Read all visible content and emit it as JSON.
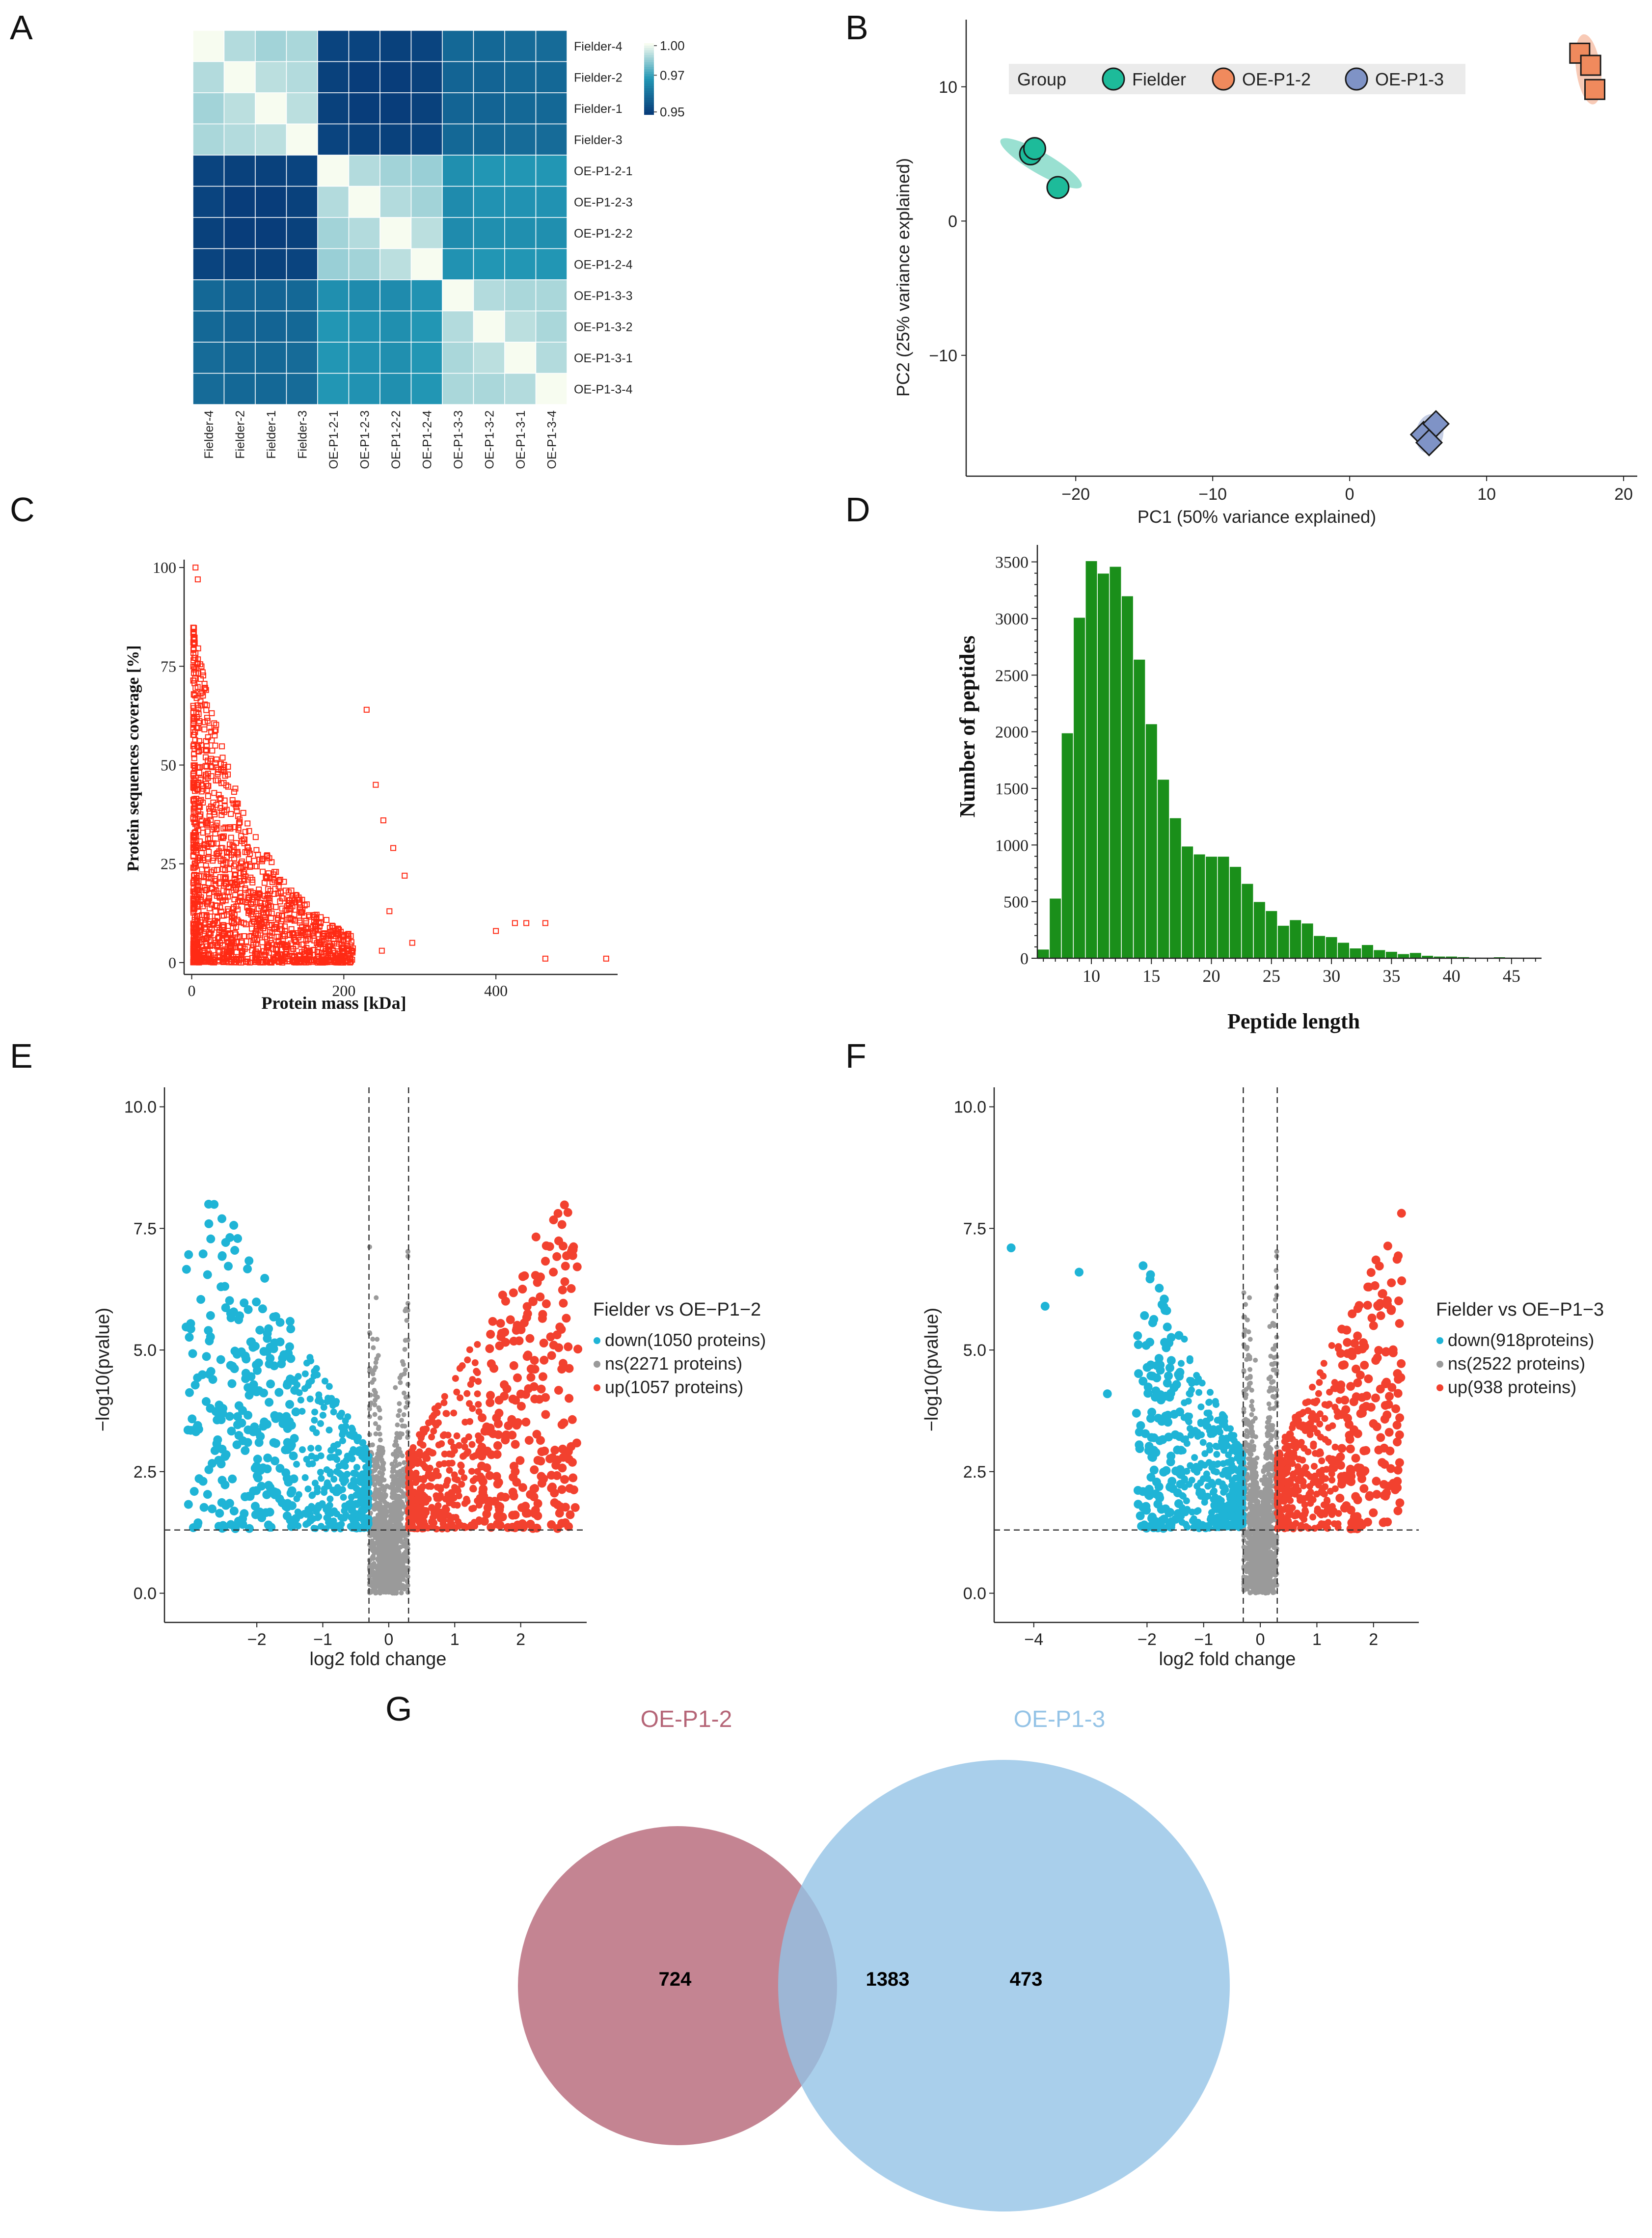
{
  "figure": {
    "panel_labels": [
      "A",
      "B",
      "C",
      "D",
      "E",
      "F",
      "G"
    ],
    "colors": {
      "fielder": "#1dbb9a",
      "oe12": "#f08a5d",
      "oe13": "#7f93c6",
      "down": "#1fb4d6",
      "up": "#f2412f",
      "ns": "#9a9a9a",
      "bar": "#1a8f1a",
      "scatter": "#ff2a14",
      "venn_left": "#b56577",
      "venn_right": "#94c3e6"
    }
  },
  "chart_data": [
    {
      "panel": "A",
      "type": "heatmap",
      "labels": [
        "Fielder-4",
        "Fielder-2",
        "Fielder-1",
        "Fielder-3",
        "OE-P1-2-1",
        "OE-P1-2-3",
        "OE-P1-2-2",
        "OE-P1-2-4",
        "OE-P1-3-3",
        "OE-P1-3-2",
        "OE-P1-3-1",
        "OE-P1-3-4"
      ],
      "colorbar": {
        "ticks": [
          "1.00",
          "0.97",
          "0.95"
        ],
        "min": 0.95,
        "max": 1.0
      },
      "values": [
        [
          1.0,
          0.992,
          0.99,
          0.991,
          0.952,
          0.952,
          0.951,
          0.952,
          0.962,
          0.962,
          0.963,
          0.963
        ],
        [
          0.992,
          1.0,
          0.993,
          0.992,
          0.951,
          0.95,
          0.95,
          0.951,
          0.961,
          0.961,
          0.962,
          0.962
        ],
        [
          0.99,
          0.993,
          1.0,
          0.993,
          0.951,
          0.95,
          0.95,
          0.951,
          0.961,
          0.961,
          0.962,
          0.962
        ],
        [
          0.991,
          0.992,
          0.993,
          1.0,
          0.952,
          0.951,
          0.951,
          0.952,
          0.962,
          0.962,
          0.963,
          0.963
        ],
        [
          0.952,
          0.951,
          0.951,
          0.952,
          1.0,
          0.992,
          0.99,
          0.989,
          0.973,
          0.975,
          0.975,
          0.975
        ],
        [
          0.952,
          0.95,
          0.95,
          0.951,
          0.992,
          1.0,
          0.992,
          0.99,
          0.972,
          0.974,
          0.974,
          0.974
        ],
        [
          0.951,
          0.95,
          0.95,
          0.951,
          0.99,
          0.992,
          1.0,
          0.993,
          0.972,
          0.973,
          0.973,
          0.973
        ],
        [
          0.952,
          0.951,
          0.951,
          0.952,
          0.989,
          0.99,
          0.993,
          1.0,
          0.974,
          0.975,
          0.975,
          0.975
        ],
        [
          0.962,
          0.961,
          0.961,
          0.962,
          0.973,
          0.972,
          0.972,
          0.974,
          1.0,
          0.992,
          0.991,
          0.991
        ],
        [
          0.962,
          0.961,
          0.961,
          0.962,
          0.975,
          0.974,
          0.973,
          0.975,
          0.992,
          1.0,
          0.993,
          0.991
        ],
        [
          0.963,
          0.962,
          0.962,
          0.963,
          0.975,
          0.974,
          0.973,
          0.975,
          0.991,
          0.993,
          1.0,
          0.992
        ],
        [
          0.963,
          0.962,
          0.962,
          0.963,
          0.975,
          0.974,
          0.973,
          0.975,
          0.991,
          0.991,
          0.992,
          1.0
        ]
      ]
    },
    {
      "panel": "B",
      "type": "scatter",
      "xlabel": "PC1 (50% variance explained)",
      "ylabel": "PC2 (25% variance explained)",
      "xlim": [
        -28,
        21
      ],
      "ylim": [
        -19,
        15
      ],
      "xticks": [
        -20,
        -10,
        0,
        10,
        20
      ],
      "yticks": [
        10,
        0,
        -10
      ],
      "legend": {
        "title": "Group",
        "position": "top"
      },
      "series": [
        {
          "name": "Fielder",
          "shape": "circle",
          "points": [
            [
              -23.3,
              5.0
            ],
            [
              -23.0,
              5.4
            ],
            [
              -21.3,
              2.5
            ]
          ]
        },
        {
          "name": "OE-P1-2",
          "shape": "square",
          "points": [
            [
              16.8,
              12.5
            ],
            [
              17.6,
              11.6
            ],
            [
              17.9,
              9.8
            ]
          ]
        },
        {
          "name": "OE-P1-3",
          "shape": "diamond",
          "points": [
            [
              5.4,
              -15.9
            ],
            [
              6.3,
              -15.1
            ],
            [
              5.8,
              -16.5
            ]
          ]
        }
      ]
    },
    {
      "panel": "C",
      "type": "scatter",
      "xlabel": "Protein mass [kDa]",
      "ylabel": "Protein sequences coverage [%]",
      "xlim": [
        -10,
        560
      ],
      "ylim": [
        -3,
        102
      ],
      "xticks": [
        0,
        200,
        400
      ],
      "yticks": [
        0,
        25,
        50,
        75,
        100
      ],
      "outliers": [
        [
          5,
          100
        ],
        [
          8,
          97
        ],
        [
          230,
          64
        ],
        [
          242,
          45
        ],
        [
          252,
          36
        ],
        [
          265,
          29
        ],
        [
          280,
          22
        ],
        [
          260,
          13
        ],
        [
          400,
          8
        ],
        [
          425,
          10
        ],
        [
          440,
          10
        ],
        [
          465,
          10
        ],
        [
          465,
          1
        ],
        [
          545,
          1
        ],
        [
          290,
          5
        ],
        [
          250,
          3
        ]
      ]
    },
    {
      "panel": "D",
      "type": "bar",
      "xlabel": "Peptide length",
      "ylabel": "Number of peptides",
      "xlim": [
        5.5,
        47.5
      ],
      "ylim": [
        0,
        3650
      ],
      "xticks": [
        10,
        15,
        20,
        25,
        30,
        35,
        40,
        45
      ],
      "yticks": [
        0,
        500,
        1000,
        1500,
        2000,
        2500,
        3000,
        3500
      ],
      "categories": [
        6,
        7,
        8,
        9,
        10,
        11,
        12,
        13,
        14,
        15,
        16,
        17,
        18,
        19,
        20,
        21,
        22,
        23,
        24,
        25,
        26,
        27,
        28,
        29,
        30,
        31,
        32,
        33,
        34,
        35,
        36,
        37,
        38,
        39,
        40,
        41,
        42,
        43,
        44,
        45,
        46,
        47
      ],
      "values": [
        80,
        530,
        1990,
        3010,
        3510,
        3400,
        3460,
        3200,
        2640,
        2070,
        1580,
        1240,
        990,
        920,
        900,
        900,
        810,
        660,
        500,
        420,
        290,
        340,
        310,
        200,
        190,
        140,
        90,
        120,
        75,
        60,
        40,
        50,
        25,
        18,
        18,
        13,
        8,
        6,
        12,
        8,
        6,
        4
      ]
    },
    {
      "panel": "E",
      "type": "scatter",
      "xlabel": "log2 fold change",
      "ylabel": "−log10(pvalue)",
      "xlim": [
        -3.4,
        3.0
      ],
      "ylim": [
        -0.6,
        10.4
      ],
      "xticks": [
        -2,
        -1,
        0,
        1,
        2
      ],
      "yticks": [
        0.0,
        2.5,
        5.0,
        7.5,
        10.0
      ],
      "vlines": [
        -0.3,
        0.3
      ],
      "hline": 1.3,
      "legend_title": "Fielder vs OE−P1−2",
      "legend_entries": [
        "down(1050 proteins)",
        "ns(2271 proteins)",
        "up(1057 proteins)"
      ],
      "counts": {
        "down": 1050,
        "ns": 2271,
        "up": 1057
      },
      "spread": {
        "down_xmin": -3.1,
        "up_xmax": 2.9
      }
    },
    {
      "panel": "F",
      "type": "scatter",
      "xlabel": "log2 fold change",
      "ylabel": "−log10(pvalue)",
      "xlim": [
        -4.7,
        2.8
      ],
      "ylim": [
        -0.6,
        10.4
      ],
      "xticks": [
        -4,
        -2,
        -1,
        0,
        1,
        2
      ],
      "yticks": [
        0.0,
        2.5,
        5.0,
        7.5,
        10.0
      ],
      "vlines": [
        -0.3,
        0.3
      ],
      "hline": 1.3,
      "legend_title": "Fielder vs OE−P1−3",
      "legend_entries": [
        "down(918proteins)",
        "ns(2522 proteins)",
        "up(938 proteins)"
      ],
      "counts": {
        "down": 918,
        "ns": 2522,
        "up": 938
      },
      "spread": {
        "down_xmin": -2.2,
        "up_xmax": 2.5
      },
      "extra_down": [
        [
          -4.4,
          7.1
        ],
        [
          -3.8,
          5.9
        ],
        [
          -3.2,
          6.6
        ],
        [
          -2.7,
          4.1
        ]
      ]
    },
    {
      "panel": "G",
      "type": "venn",
      "sets": [
        "OE-P1-2",
        "OE-P1-3"
      ],
      "regions": {
        "left_only": "724",
        "intersection": "1383",
        "right_only": "473"
      }
    }
  ]
}
